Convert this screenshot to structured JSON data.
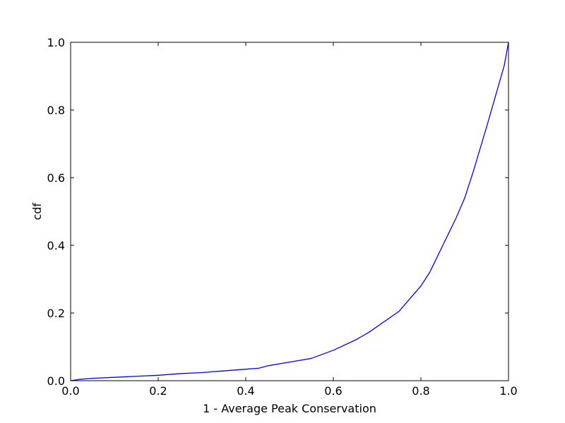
{
  "chart_data": {
    "type": "line",
    "title": "",
    "xlabel": "1 - Average Peak Conservation",
    "ylabel": "cdf",
    "xlim": [
      0.0,
      1.0
    ],
    "ylim": [
      0.0,
      1.0
    ],
    "xticks": [
      "0.0",
      "0.2",
      "0.4",
      "0.6",
      "0.8",
      "1.0"
    ],
    "yticks": [
      "0.0",
      "0.2",
      "0.4",
      "0.6",
      "0.8",
      "1.0"
    ],
    "grid": false,
    "legend": "none",
    "series": [
      {
        "color": "#0000ff",
        "x": [
          0.0,
          0.02,
          0.05,
          0.1,
          0.15,
          0.2,
          0.25,
          0.3,
          0.35,
          0.4,
          0.43,
          0.45,
          0.5,
          0.55,
          0.6,
          0.65,
          0.68,
          0.7,
          0.75,
          0.8,
          0.82,
          0.85,
          0.88,
          0.9,
          0.92,
          0.95,
          0.97,
          0.99,
          1.0
        ],
        "y": [
          0.0,
          0.004,
          0.007,
          0.01,
          0.013,
          0.016,
          0.021,
          0.024,
          0.029,
          0.034,
          0.037,
          0.044,
          0.055,
          0.066,
          0.09,
          0.12,
          0.142,
          0.16,
          0.205,
          0.28,
          0.32,
          0.4,
          0.48,
          0.54,
          0.62,
          0.75,
          0.84,
          0.93,
          1.0
        ]
      }
    ]
  }
}
